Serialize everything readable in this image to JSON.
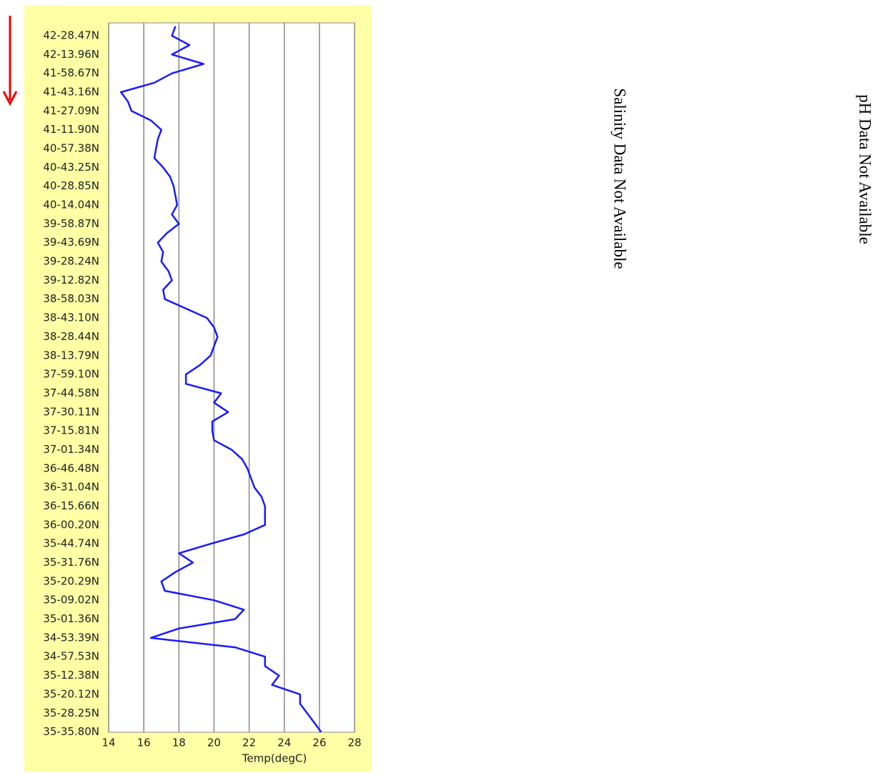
{
  "chart_data": {
    "type": "line",
    "xlabel": "Temp(degC)",
    "color": "#1a1aff",
    "categories": [
      null,
      "42-28.47N",
      null,
      "42-13.96N",
      null,
      "41-58.67N",
      null,
      "41-43.16N",
      null,
      "41-27.09N",
      null,
      "41-11.90N",
      null,
      "40-57.38N",
      null,
      "40-43.25N",
      null,
      "40-28.85N",
      null,
      "40-14.04N",
      null,
      "39-58.87N",
      null,
      "39-43.69N",
      null,
      "39-28.24N",
      null,
      "39-12.82N",
      null,
      "38-58.03N",
      null,
      "38-43.10N",
      null,
      "38-28.44N",
      null,
      "38-13.79N",
      null,
      "37-59.10N",
      null,
      "37-44.58N",
      null,
      "37-30.11N",
      null,
      "37-15.81N",
      null,
      "37-01.34N",
      null,
      "36-46.48N",
      null,
      "36-31.04N",
      null,
      "36-15.66N",
      null,
      "36-00.20N",
      null,
      "35-44.74N",
      null,
      "35-31.76N",
      null,
      "35-20.29N",
      null,
      "35-09.02N",
      null,
      "35-01.36N",
      null,
      "34-53.39N",
      null,
      "34-57.53N",
      null,
      "35-12.38N",
      null,
      "35-20.12N",
      null,
      "35-28.25N",
      null,
      "35-35.80N"
    ],
    "values": [
      17.8,
      17.6,
      18.6,
      17.6,
      19.4,
      17.6,
      16.6,
      14.7,
      15.1,
      15.3,
      16.4,
      17.0,
      16.8,
      16.7,
      16.6,
      17.1,
      17.5,
      17.7,
      17.8,
      17.9,
      17.6,
      18.0,
      17.3,
      16.8,
      17.1,
      17.0,
      17.4,
      17.6,
      17.1,
      17.2,
      18.4,
      19.6,
      20.0,
      20.2,
      20.0,
      19.8,
      19.2,
      18.4,
      18.4,
      20.4,
      20.0,
      20.8,
      19.9,
      19.9,
      20.0,
      21.0,
      21.6,
      21.9,
      22.1,
      22.3,
      22.7,
      22.9,
      22.9,
      22.9,
      21.7,
      19.8,
      18.0,
      18.8,
      17.8,
      17.0,
      17.2,
      20.0,
      21.7,
      21.2,
      18.0,
      16.4,
      21.2,
      22.9,
      22.9,
      23.7,
      23.3,
      24.9,
      24.9,
      25.3,
      25.7,
      26.1
    ],
    "xlim": [
      14,
      28
    ],
    "xticks": [
      14,
      16,
      18,
      20,
      22,
      24,
      26,
      28
    ],
    "grid": true,
    "annotations": [
      "Salinity Data Not Available",
      "pH Data Not Available"
    ]
  }
}
